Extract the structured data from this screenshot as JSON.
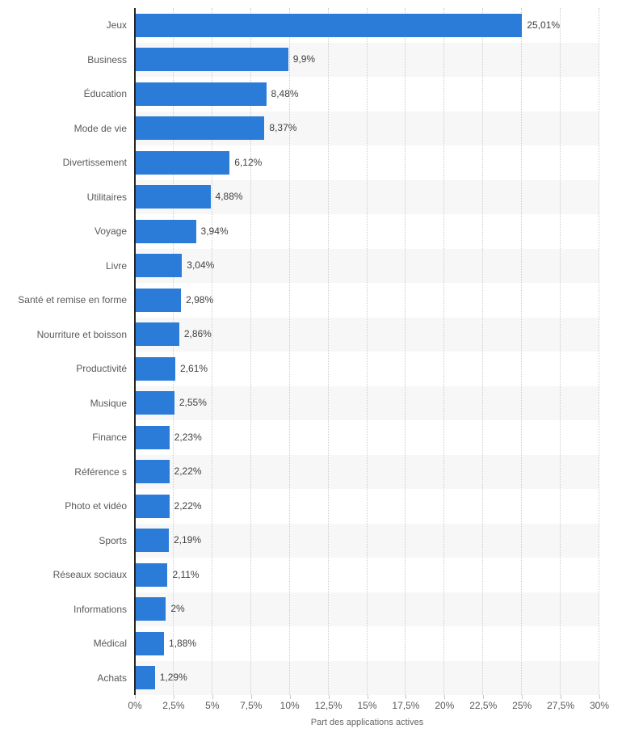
{
  "chart_data": {
    "type": "bar",
    "orientation": "horizontal",
    "title": "",
    "xlabel": "Part des applications actives",
    "ylabel": "",
    "xlim": [
      0,
      30
    ],
    "grid": "vertical-dotted",
    "legend": "none",
    "categories": [
      "Jeux",
      "Business",
      "Éducation",
      "Mode de vie",
      "Divertissement",
      "Utilitaires",
      "Voyage",
      "Livre",
      "Santé et remise en forme",
      "Nourriture et boisson",
      "Productivité",
      "Musique",
      "Finance",
      "Référence s",
      "Photo et vidéo",
      "Sports",
      "Réseaux sociaux",
      "Informations",
      "Médical",
      "Achats"
    ],
    "values": [
      25.01,
      9.9,
      8.48,
      8.37,
      6.12,
      4.88,
      3.94,
      3.04,
      2.98,
      2.86,
      2.61,
      2.55,
      2.23,
      2.22,
      2.22,
      2.19,
      2.11,
      2,
      1.88,
      1.29
    ],
    "value_labels": [
      "25,01%",
      "9,9%",
      "8,48%",
      "8,37%",
      "6,12%",
      "4,88%",
      "3,94%",
      "3,04%",
      "2,98%",
      "2,86%",
      "2,61%",
      "2,55%",
      "2,23%",
      "2,22%",
      "2,22%",
      "2,19%",
      "2,11%",
      "2%",
      "1,88%",
      "1,29%"
    ],
    "x_ticks": [
      {
        "v": 0,
        "label": "0%"
      },
      {
        "v": 2.5,
        "label": "2,5%"
      },
      {
        "v": 5,
        "label": "5%"
      },
      {
        "v": 7.5,
        "label": "7,5%"
      },
      {
        "v": 10,
        "label": "10%"
      },
      {
        "v": 12.5,
        "label": "12,5%"
      },
      {
        "v": 15,
        "label": "15%"
      },
      {
        "v": 17.5,
        "label": "17,5%"
      },
      {
        "v": 20,
        "label": "20%"
      },
      {
        "v": 22.5,
        "label": "22,5%"
      },
      {
        "v": 25,
        "label": "25%"
      },
      {
        "v": 27.5,
        "label": "27,5%"
      },
      {
        "v": 30,
        "label": "30%"
      }
    ]
  },
  "style": {
    "bar_color": "#2b7cd9",
    "band_color": "#f7f7f7",
    "grid_color": "#cccccc",
    "axis_line_color": "#262626",
    "category_label_color": "#595959",
    "value_label_color": "#404040",
    "background_color": "#ffffff"
  }
}
